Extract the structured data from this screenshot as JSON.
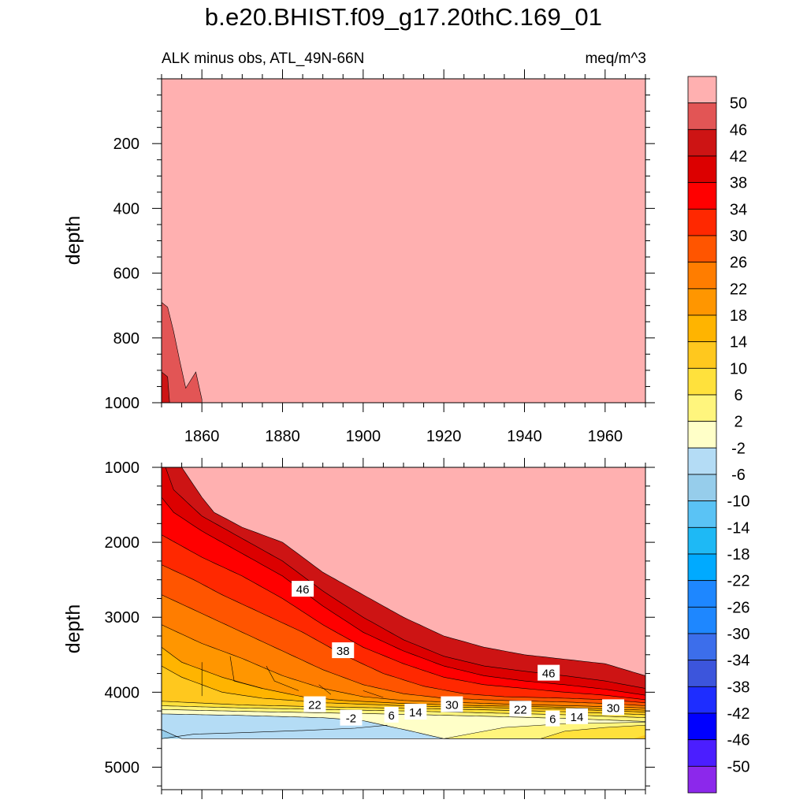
{
  "title": "b.e20.BHIST.f09_g17.20thC.169_01",
  "subtitle_left": "ALK minus obs, ATL_49N-66N",
  "subtitle_right": "meq/m^3",
  "chart_data": [
    {
      "type": "heatmap",
      "name": "upper-panel",
      "ylabel": "depth",
      "y_reversed": true,
      "xlim": [
        1850,
        1970
      ],
      "ylim": [
        1000,
        0
      ],
      "x_ticks": [
        "1860",
        "1880",
        "1900",
        "1920",
        "1940",
        "1960"
      ],
      "y_ticks": [
        "200",
        "400",
        "600",
        "800",
        "1000"
      ],
      "background_value": 50,
      "regions": [
        {
          "value": 46,
          "boundary": [
            [
              1850,
              690
            ],
            [
              1851.5,
              705
            ],
            [
              1853,
              780
            ],
            [
              1854.5,
              870
            ],
            [
              1856,
              955
            ],
            [
              1858.5,
              905
            ],
            [
              1860,
              990
            ],
            [
              1860,
              1000
            ],
            [
              1850,
              1000
            ]
          ]
        },
        {
          "value": 42,
          "boundary": [
            [
              1850,
              905
            ],
            [
              1851.5,
              920
            ],
            [
              1852,
              1000
            ],
            [
              1850,
              1000
            ]
          ]
        }
      ]
    },
    {
      "type": "heatmap",
      "name": "lower-panel",
      "ylabel": "depth",
      "y_reversed": true,
      "xlim": [
        1850,
        1970
      ],
      "ylim": [
        5300,
        1000
      ],
      "y_ticks": [
        "1000",
        "2000",
        "3000",
        "4000",
        "5000"
      ],
      "data_max_depth": 4620,
      "contour_labels": [
        {
          "text": "46",
          "x": 1885,
          "y": 2620
        },
        {
          "text": "38",
          "x": 1895,
          "y": 3440
        },
        {
          "text": "46",
          "x": 1946,
          "y": 3740
        },
        {
          "text": "22",
          "x": 1888,
          "y": 4160
        },
        {
          "text": "30",
          "x": 1922,
          "y": 4160
        },
        {
          "text": "22",
          "x": 1939,
          "y": 4220
        },
        {
          "text": "30",
          "x": 1962,
          "y": 4200
        },
        {
          "text": "-2",
          "x": 1897,
          "y": 4340
        },
        {
          "text": "6",
          "x": 1907,
          "y": 4300
        },
        {
          "text": "14",
          "x": 1913,
          "y": 4260
        },
        {
          "text": "6",
          "x": 1947,
          "y": 4350
        },
        {
          "text": "14",
          "x": 1953,
          "y": 4320
        }
      ]
    }
  ],
  "colorbar": {
    "levels": [
      "50",
      "46",
      "42",
      "38",
      "34",
      "30",
      "26",
      "22",
      "18",
      "14",
      "10",
      "6",
      "2",
      "-2",
      "-6",
      "-10",
      "-14",
      "-18",
      "-22",
      "-26",
      "-30",
      "-34",
      "-38",
      "-42",
      "-46",
      "-50"
    ],
    "colors": [
      "#ffb0b0",
      "#e25555",
      "#cd1414",
      "#dc0000",
      "#ff0000",
      "#ff2800",
      "#ff5500",
      "#ff7d00",
      "#ff9600",
      "#ffb400",
      "#ffc81e",
      "#ffe13c",
      "#fff57d",
      "#ffffc8",
      "#b4dcf5",
      "#96cdeb",
      "#5ac3f5",
      "#1eb9f5",
      "#00aaff",
      "#1e87ff",
      "#1e87ff",
      "#3c6eeb",
      "#3c55dc",
      "#1e2dff",
      "#0000ff",
      "#4b1eff",
      "#8c28eb"
    ]
  }
}
